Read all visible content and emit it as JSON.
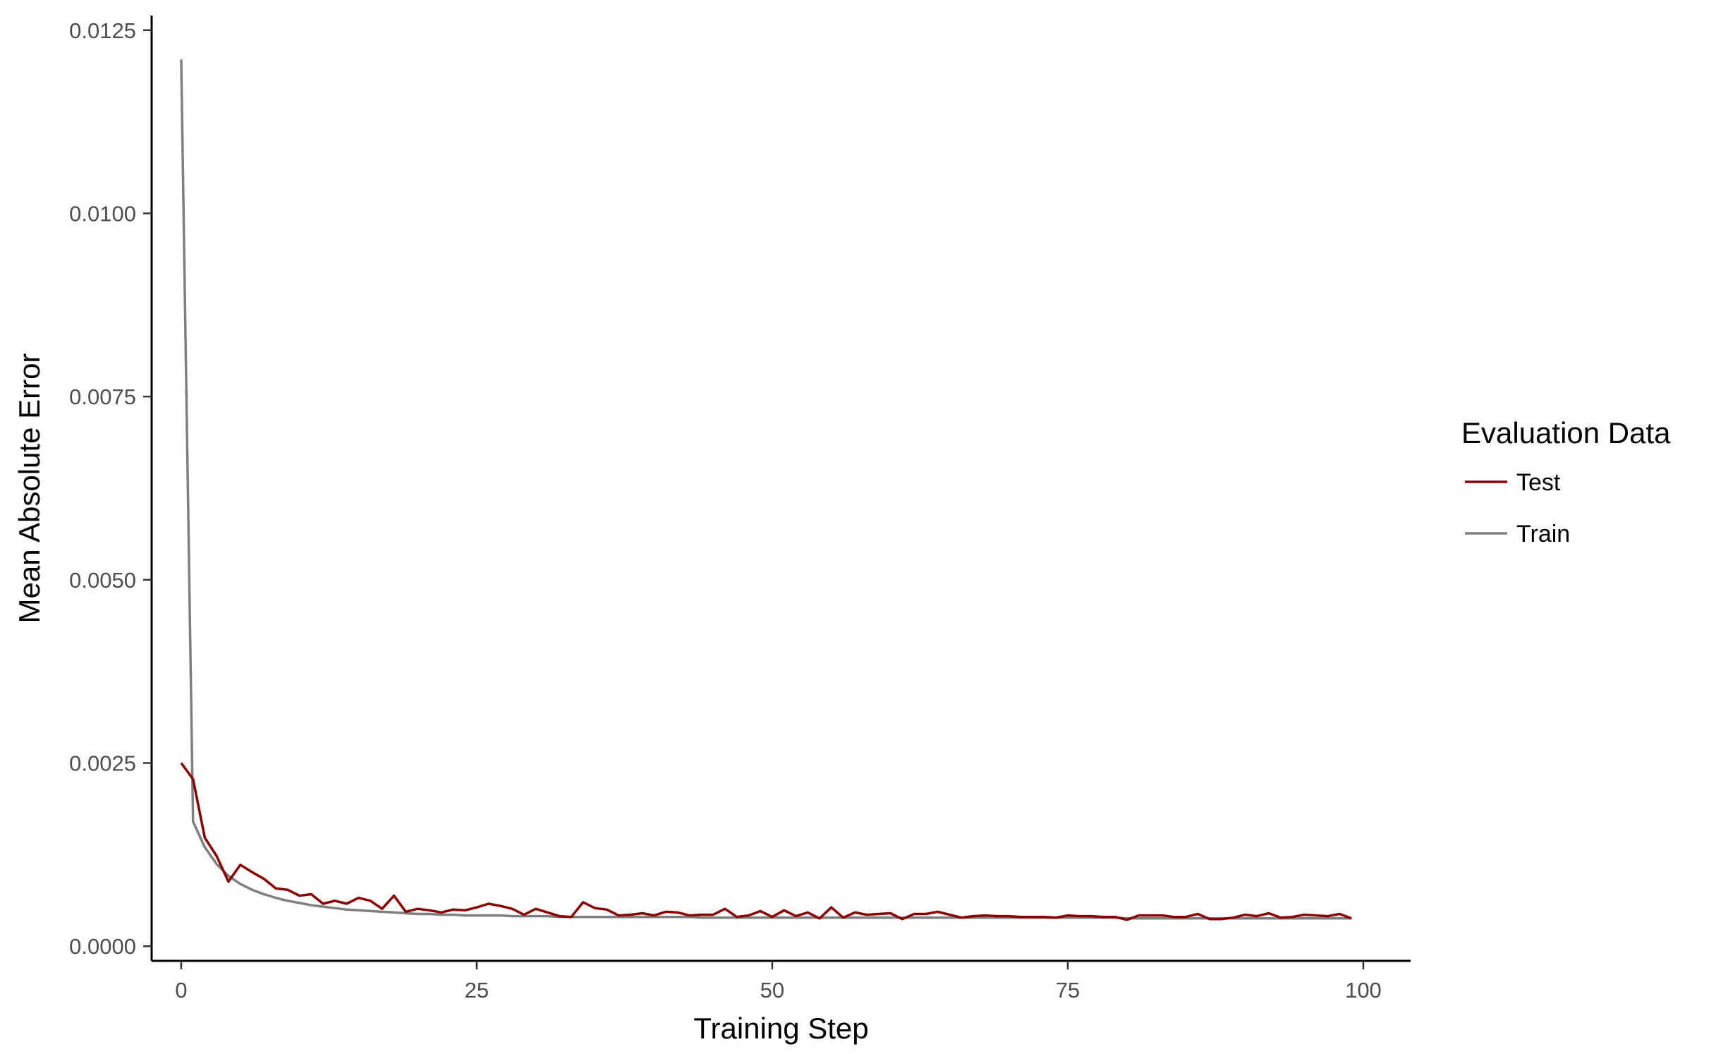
{
  "chart_data": {
    "type": "line",
    "title": "",
    "xlabel": "Training Step",
    "ylabel": "Mean Absolute Error",
    "xlim": [
      -2.5,
      104
    ],
    "ylim": [
      -0.0002,
      0.0127
    ],
    "xticks": [
      0,
      25,
      50,
      75,
      100
    ],
    "xtick_labels": [
      "0",
      "25",
      "50",
      "75",
      "100"
    ],
    "yticks": [
      0,
      0.0025,
      0.005,
      0.0075,
      0.01,
      0.0125
    ],
    "ytick_labels": [
      "0.0000",
      "0.0025",
      "0.0050",
      "0.0075",
      "0.0100",
      "0.0125"
    ],
    "grid": false,
    "legend": {
      "title": "Evaluation Data",
      "position": "right"
    },
    "series": [
      {
        "name": "Test",
        "color": "#8b0000",
        "x": [
          0,
          1,
          2,
          3,
          4,
          5,
          6,
          7,
          8,
          9,
          10,
          11,
          12,
          13,
          14,
          15,
          16,
          17,
          18,
          19,
          20,
          21,
          22,
          23,
          24,
          25,
          26,
          27,
          28,
          29,
          30,
          31,
          32,
          33,
          34,
          35,
          36,
          37,
          38,
          39,
          40,
          41,
          42,
          43,
          44,
          45,
          46,
          47,
          48,
          49,
          50,
          51,
          52,
          53,
          54,
          55,
          56,
          57,
          58,
          59,
          60,
          61,
          62,
          63,
          64,
          65,
          66,
          67,
          68,
          69,
          70,
          71,
          72,
          73,
          74,
          75,
          76,
          77,
          78,
          79,
          80,
          81,
          82,
          83,
          84,
          85,
          86,
          87,
          88,
          89,
          90,
          91,
          92,
          93,
          94,
          95,
          96,
          97,
          98,
          99
        ],
        "values": [
          0.0025,
          0.00228,
          0.00148,
          0.00123,
          0.00088,
          0.00111,
          0.00101,
          0.00092,
          0.00079,
          0.00077,
          0.00069,
          0.00071,
          0.00058,
          0.00062,
          0.00058,
          0.00066,
          0.00062,
          0.00051,
          0.00069,
          0.00047,
          0.00051,
          0.00049,
          0.00046,
          0.0005,
          0.00049,
          0.00053,
          0.00058,
          0.00055,
          0.00051,
          0.00043,
          0.00051,
          0.00046,
          0.00041,
          0.0004,
          0.0006,
          0.00052,
          0.0005,
          0.00042,
          0.00043,
          0.00045,
          0.00042,
          0.00047,
          0.00046,
          0.00042,
          0.00043,
          0.00043,
          0.00051,
          0.0004,
          0.00042,
          0.00048,
          0.0004,
          0.00049,
          0.00041,
          0.00046,
          0.00038,
          0.00053,
          0.00039,
          0.00046,
          0.00043,
          0.00044,
          0.00045,
          0.00037,
          0.00044,
          0.00044,
          0.00047,
          0.00043,
          0.00039,
          0.00041,
          0.00042,
          0.00041,
          0.00041,
          0.0004,
          0.0004,
          0.0004,
          0.00039,
          0.00042,
          0.00041,
          0.00041,
          0.0004,
          0.0004,
          0.00036,
          0.00042,
          0.00042,
          0.00042,
          0.0004,
          0.0004,
          0.00044,
          0.00037,
          0.00037,
          0.00039,
          0.00043,
          0.00041,
          0.00045,
          0.00039,
          0.0004,
          0.00043,
          0.00042,
          0.00041,
          0.00044,
          0.00038
        ]
      },
      {
        "name": "Train",
        "color": "#7f7f7f",
        "x": [
          0,
          1,
          2,
          3,
          4,
          5,
          6,
          7,
          8,
          9,
          10,
          11,
          12,
          13,
          14,
          15,
          16,
          17,
          18,
          19,
          20,
          21,
          22,
          23,
          24,
          25,
          26,
          27,
          28,
          29,
          30,
          31,
          32,
          33,
          34,
          35,
          36,
          37,
          38,
          39,
          40,
          41,
          42,
          43,
          44,
          45,
          46,
          47,
          48,
          49,
          50,
          51,
          52,
          53,
          54,
          55,
          56,
          57,
          58,
          59,
          60,
          61,
          62,
          63,
          64,
          65,
          66,
          67,
          68,
          69,
          70,
          71,
          72,
          73,
          74,
          75,
          76,
          77,
          78,
          79,
          80,
          81,
          82,
          83,
          84,
          85,
          86,
          87,
          88,
          89,
          90,
          91,
          92,
          93,
          94,
          95,
          96,
          97,
          98,
          99
        ],
        "values": [
          0.0121,
          0.0017,
          0.00135,
          0.00112,
          0.00096,
          0.00085,
          0.00077,
          0.00071,
          0.00066,
          0.00062,
          0.00059,
          0.00056,
          0.00054,
          0.00052,
          0.0005,
          0.00049,
          0.00048,
          0.00047,
          0.00046,
          0.00045,
          0.00044,
          0.00044,
          0.00043,
          0.00043,
          0.00042,
          0.00042,
          0.00042,
          0.00042,
          0.00041,
          0.00041,
          0.00041,
          0.00041,
          0.0004,
          0.0004,
          0.0004,
          0.0004,
          0.0004,
          0.0004,
          0.0004,
          0.0004,
          0.0004,
          0.0004,
          0.0004,
          0.0004,
          0.00039,
          0.00039,
          0.00039,
          0.00039,
          0.00039,
          0.00039,
          0.00039,
          0.00039,
          0.00039,
          0.00039,
          0.00039,
          0.00039,
          0.00039,
          0.00039,
          0.00039,
          0.00039,
          0.00039,
          0.00039,
          0.00039,
          0.00039,
          0.00039,
          0.00039,
          0.00039,
          0.00039,
          0.00039,
          0.00039,
          0.00039,
          0.00039,
          0.00039,
          0.00039,
          0.00039,
          0.00039,
          0.00039,
          0.00039,
          0.00039,
          0.00039,
          0.00038,
          0.00038,
          0.00038,
          0.00038,
          0.00038,
          0.00038,
          0.00038,
          0.00038,
          0.00038,
          0.00038,
          0.00038,
          0.00038,
          0.00038,
          0.00038,
          0.00038,
          0.00038,
          0.00038,
          0.00038,
          0.00038,
          0.00038
        ]
      }
    ]
  }
}
